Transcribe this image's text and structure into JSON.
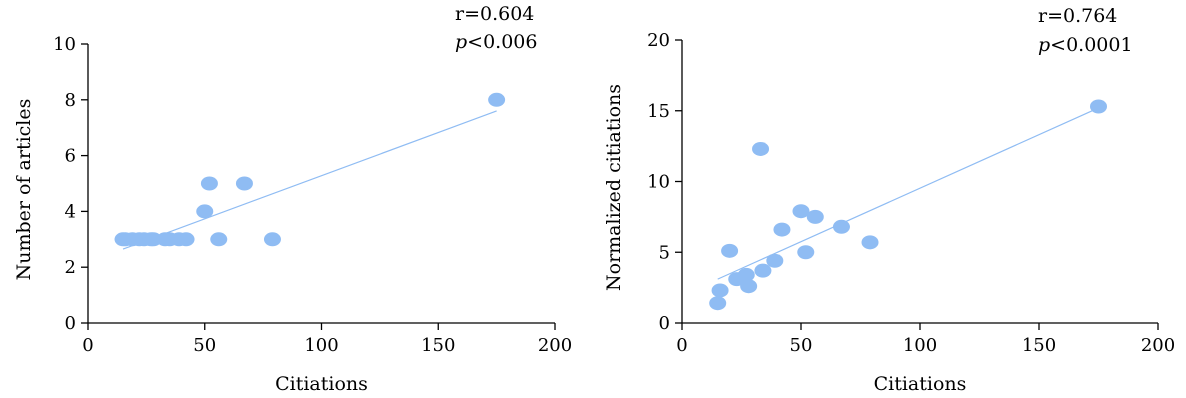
{
  "colors": {
    "point": "#8fbcf3",
    "fit_line": "#8fbcf3",
    "axis": "#000000",
    "background": "#ffffff"
  },
  "chart_data": [
    {
      "type": "scatter",
      "xlabel": "Citiations",
      "ylabel": "Number of articles",
      "xlim": [
        0,
        200
      ],
      "ylim": [
        0,
        10
      ],
      "xticks": [
        0,
        50,
        100,
        150,
        200
      ],
      "yticks": [
        0,
        2,
        4,
        6,
        8,
        10
      ],
      "stats": {
        "r_text": "r=0.604",
        "p_symbol": "p",
        "p_rest": "<0.006"
      },
      "grid": false,
      "points": [
        {
          "x": 15,
          "y": 3
        },
        {
          "x": 16,
          "y": 3
        },
        {
          "x": 19,
          "y": 3
        },
        {
          "x": 22,
          "y": 3
        },
        {
          "x": 24,
          "y": 3
        },
        {
          "x": 27,
          "y": 3
        },
        {
          "x": 28,
          "y": 3
        },
        {
          "x": 33,
          "y": 3
        },
        {
          "x": 35,
          "y": 3
        },
        {
          "x": 39,
          "y": 3
        },
        {
          "x": 42,
          "y": 3
        },
        {
          "x": 50,
          "y": 4
        },
        {
          "x": 52,
          "y": 5
        },
        {
          "x": 56,
          "y": 3
        },
        {
          "x": 67,
          "y": 5
        },
        {
          "x": 79,
          "y": 3
        },
        {
          "x": 175,
          "y": 8
        }
      ],
      "fit_line": {
        "x": [
          15,
          175
        ],
        "y": [
          2.65,
          7.6
        ]
      }
    },
    {
      "type": "scatter",
      "xlabel": "Citiations",
      "ylabel": "Normalized citiations",
      "xlim": [
        0,
        200
      ],
      "ylim": [
        0,
        20
      ],
      "xticks": [
        0,
        50,
        100,
        150,
        200
      ],
      "yticks": [
        0,
        5,
        10,
        15,
        20
      ],
      "stats": {
        "r_text": "r=0.764",
        "p_symbol": "p",
        "p_rest": "<0.0001"
      },
      "grid": false,
      "points": [
        {
          "x": 15,
          "y": 1.4
        },
        {
          "x": 16,
          "y": 2.3
        },
        {
          "x": 20,
          "y": 5.1
        },
        {
          "x": 23,
          "y": 3.1
        },
        {
          "x": 27,
          "y": 3.4
        },
        {
          "x": 28,
          "y": 2.6
        },
        {
          "x": 33,
          "y": 12.3
        },
        {
          "x": 34,
          "y": 3.7
        },
        {
          "x": 39,
          "y": 4.4
        },
        {
          "x": 42,
          "y": 6.6
        },
        {
          "x": 50,
          "y": 7.9
        },
        {
          "x": 52,
          "y": 5.0
        },
        {
          "x": 56,
          "y": 7.5
        },
        {
          "x": 67,
          "y": 6.8
        },
        {
          "x": 79,
          "y": 5.7
        },
        {
          "x": 175,
          "y": 15.3
        }
      ],
      "fit_line": {
        "x": [
          15,
          175
        ],
        "y": [
          3.1,
          15.2
        ]
      }
    }
  ]
}
